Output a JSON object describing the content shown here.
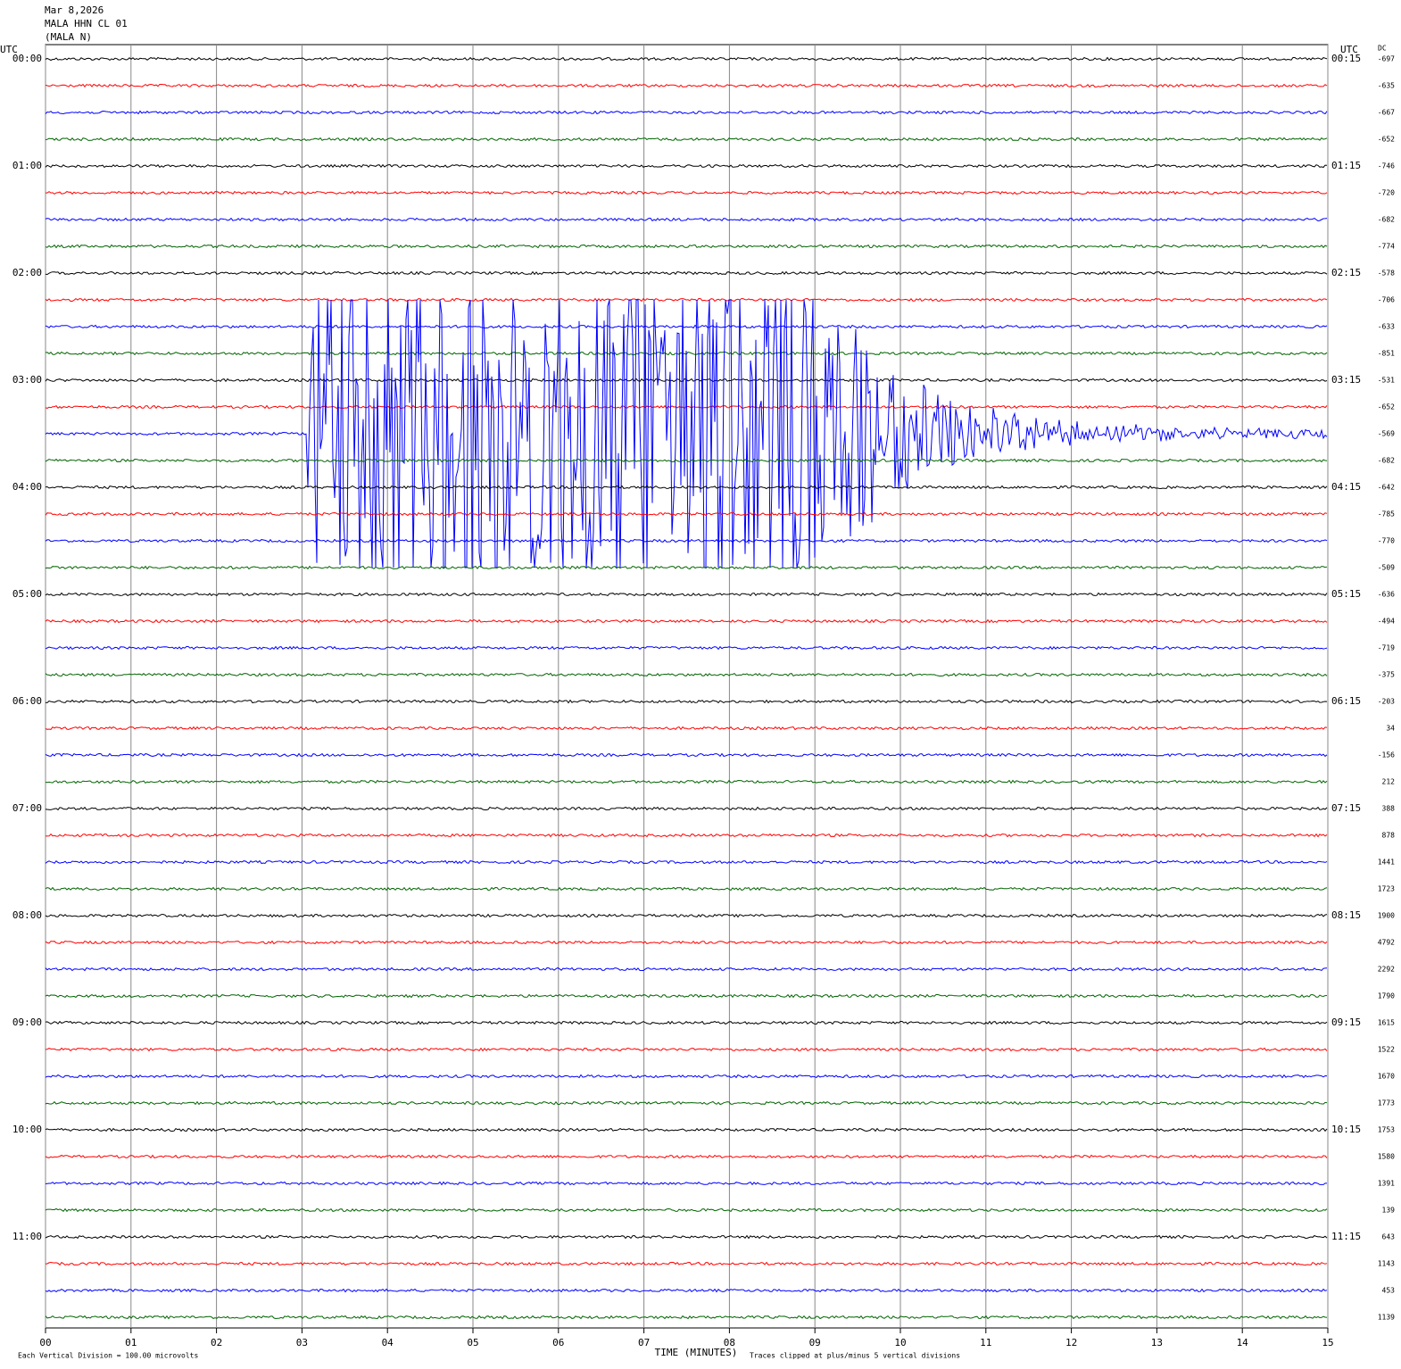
{
  "chart_data": {
    "type": "helicorder",
    "header": [
      "Mar 8,2026",
      "MALA HHN CL 01",
      "(MALA N)"
    ],
    "left_axis_title": "UTC",
    "right_axis_title": "UTC",
    "dc_title": "DC",
    "left_labels": [
      "00:00",
      "01:00",
      "02:00",
      "03:00",
      "04:00",
      "05:00",
      "06:00",
      "07:00",
      "08:00",
      "09:00",
      "10:00",
      "11:00"
    ],
    "right_labels": [
      "00:15",
      "01:15",
      "02:15",
      "03:15",
      "04:15",
      "05:15",
      "06:15",
      "07:15",
      "08:15",
      "09:15",
      "10:15",
      "11:15"
    ],
    "dc_values": [
      -697,
      -635,
      -667,
      -652,
      -746,
      -720,
      -682,
      -774,
      -578,
      -706,
      -633,
      -851,
      -531,
      -652,
      -569,
      -682,
      -642,
      -785,
      -770,
      -509,
      -636,
      -494,
      -719,
      -375,
      -203,
      34,
      -156,
      212,
      388,
      878,
      1441,
      1723,
      1900,
      4792,
      2292,
      1790,
      1615,
      1522,
      1670,
      1773,
      1753,
      1580,
      1391,
      139,
      643,
      1143,
      453,
      1139
    ],
    "trace_colors": [
      "#000000",
      "#ff0000",
      "#0000ff",
      "#006400"
    ],
    "xlabel": "TIME (MINUTES)",
    "xlim": [
      0,
      15
    ],
    "xticks": [
      {
        "value": 0,
        "label": "00"
      },
      {
        "value": 1,
        "label": "01"
      },
      {
        "value": 2,
        "label": "02"
      },
      {
        "value": 3,
        "label": "03"
      },
      {
        "value": 4,
        "label": "04"
      },
      {
        "value": 5,
        "label": "05"
      },
      {
        "value": 6,
        "label": "06"
      },
      {
        "value": 7,
        "label": "07"
      },
      {
        "value": 8,
        "label": "08"
      },
      {
        "value": 9,
        "label": "09"
      },
      {
        "value": 10,
        "label": "10"
      },
      {
        "value": 11,
        "label": "11"
      },
      {
        "value": 12,
        "label": "12"
      },
      {
        "value": 13,
        "label": "13"
      },
      {
        "value": 14,
        "label": "14"
      },
      {
        "value": 15,
        "label": "15"
      }
    ],
    "grid": true,
    "footer_left": "Each Vertical Division =  100.00 microvolts",
    "footer_right": "Traces clipped at plus/minus 5 vertical divisions"
  }
}
